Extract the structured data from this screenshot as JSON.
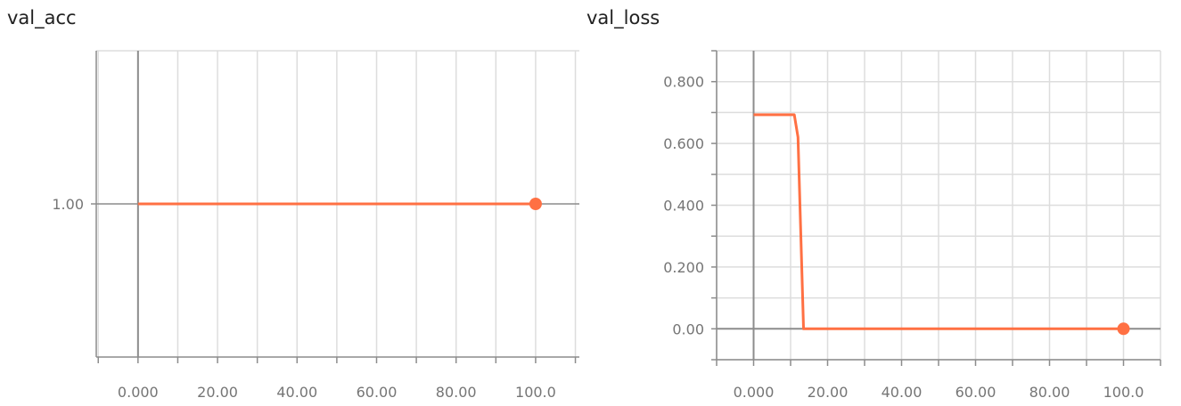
{
  "colors": {
    "series": "#ff7043",
    "grid": "#dddddd",
    "zero_axis": "#8c8c8c",
    "tick_text": "#757575",
    "title_text": "#212121"
  },
  "chart_data": [
    {
      "type": "line",
      "title": "val_acc",
      "xlabel": "",
      "ylabel": "",
      "xlim": [
        -10.5,
        111
      ],
      "ylim": [
        0.5,
        1.5
      ],
      "grid": true,
      "x_ticks": [
        0,
        20,
        40,
        60,
        80,
        100
      ],
      "x_tick_labels": [
        "0.000",
        "20.00",
        "40.00",
        "60.00",
        "80.00",
        "100.0"
      ],
      "y_ticks": [
        1.0
      ],
      "y_tick_labels": [
        "1.00"
      ],
      "series": [
        {
          "x": [
            0,
            100
          ],
          "y": [
            1.0,
            1.0
          ]
        }
      ],
      "last_point": {
        "x": 100,
        "y": 1.0
      }
    },
    {
      "type": "line",
      "title": "val_loss",
      "xlabel": "",
      "ylabel": "",
      "xlim": [
        -10,
        110
      ],
      "ylim": [
        -0.1,
        0.9
      ],
      "grid": true,
      "x_ticks": [
        0,
        20,
        40,
        60,
        80,
        100
      ],
      "x_tick_labels": [
        "0.000",
        "20.00",
        "40.00",
        "60.00",
        "80.00",
        "100.0"
      ],
      "y_ticks": [
        0,
        0.2,
        0.4,
        0.6,
        0.8
      ],
      "y_tick_labels": [
        "0.00",
        "0.200",
        "0.400",
        "0.600",
        "0.800"
      ],
      "series": [
        {
          "x": [
            0,
            11,
            12,
            13.5,
            15,
            100
          ],
          "y": [
            0.693,
            0.693,
            0.62,
            0.0,
            0.0,
            0.0
          ]
        }
      ],
      "last_point": {
        "x": 100,
        "y": 0.0
      }
    }
  ]
}
